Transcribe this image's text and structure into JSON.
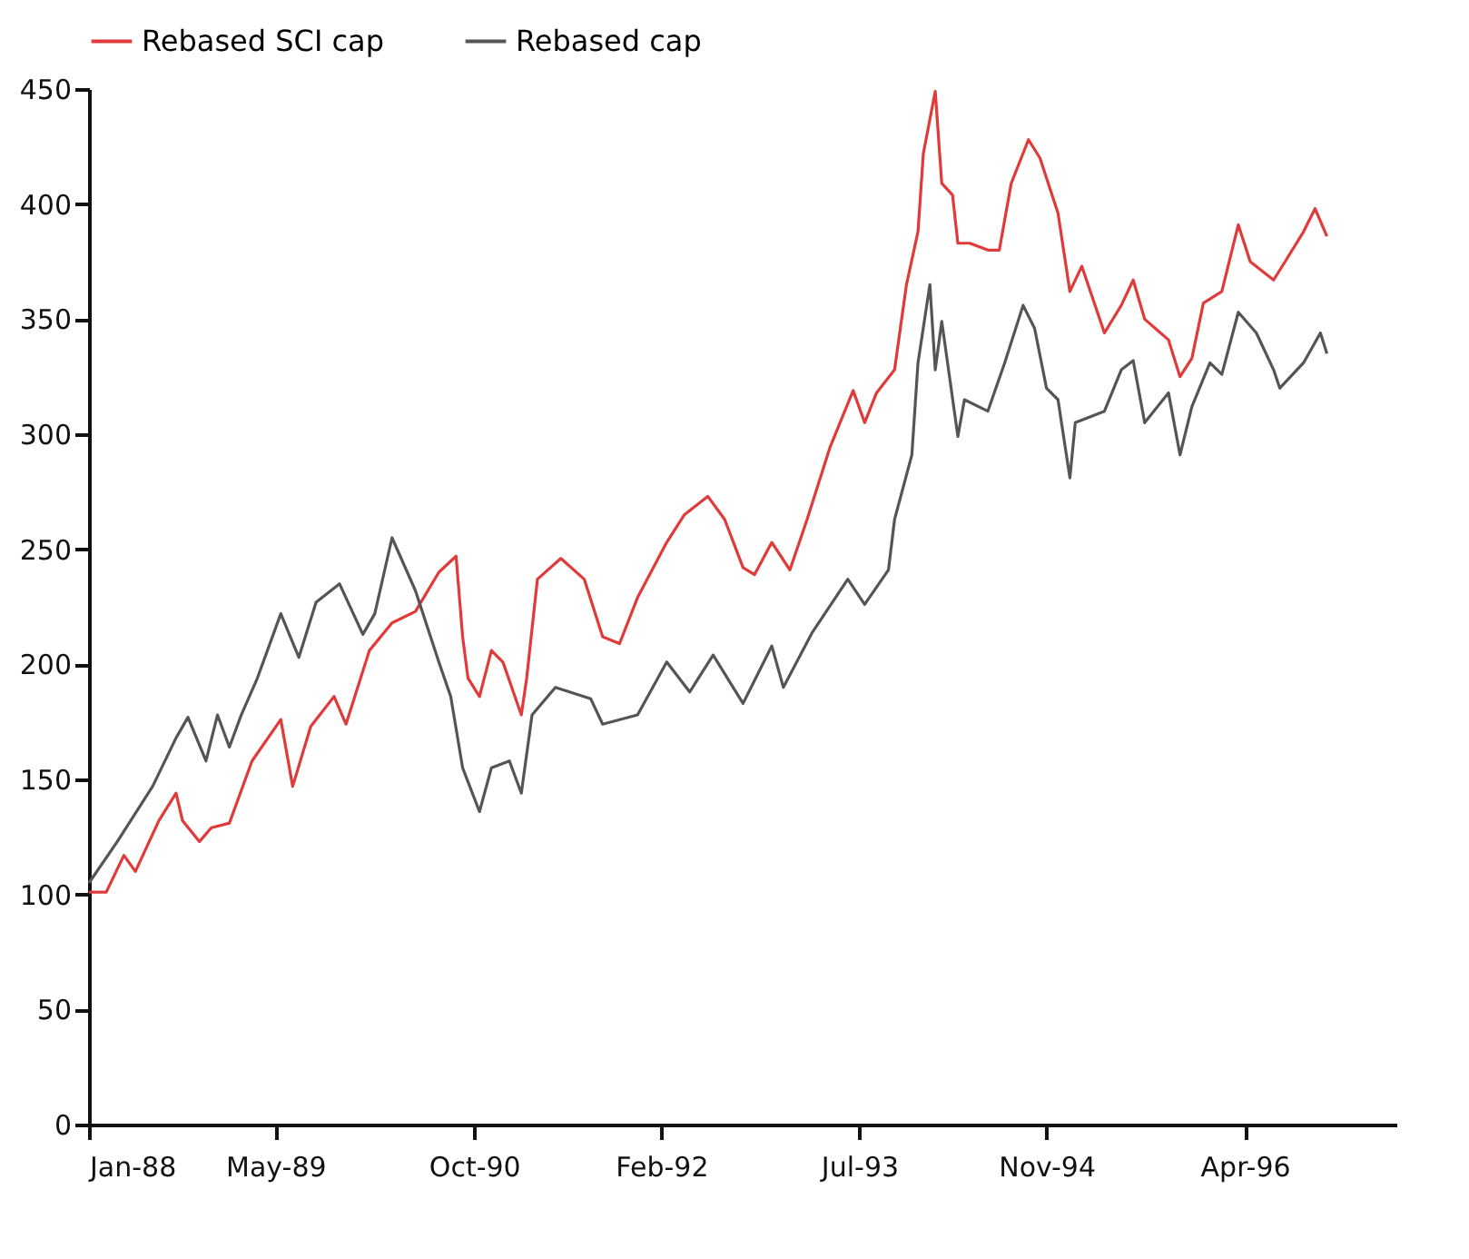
{
  "chart_data": {
    "type": "line",
    "xlim": [
      "1988-01-01",
      "1997-05-01"
    ],
    "xticks": [
      {
        "value": "1988-01-01",
        "label": "Jan-88"
      },
      {
        "value": "1989-05-01",
        "label": "May-89"
      },
      {
        "value": "1990-10-01",
        "label": "Oct-90"
      },
      {
        "value": "1992-02-01",
        "label": "Feb-92"
      },
      {
        "value": "1993-07-01",
        "label": "Jul-93"
      },
      {
        "value": "1994-11-01",
        "label": "Nov-94"
      },
      {
        "value": "1996-04-01",
        "label": "Apr-96"
      }
    ],
    "ylim": [
      0,
      450
    ],
    "yticks": [
      0,
      50,
      100,
      150,
      200,
      250,
      300,
      350,
      400,
      450
    ],
    "grid": false,
    "legend": "top",
    "series": [
      {
        "name": "Rebased SCI cap",
        "color": "#e03a3a",
        "x": [
          "1988-01-01",
          "1988-02-15",
          "1988-04-01",
          "1988-05-01",
          "1988-07-01",
          "1988-08-15",
          "1988-09-01",
          "1988-10-15",
          "1988-11-15",
          "1989-01-01",
          "1989-03-01",
          "1989-05-15",
          "1989-06-15",
          "1989-08-01",
          "1989-10-01",
          "1989-11-01",
          "1990-01-01",
          "1990-03-01",
          "1990-05-01",
          "1990-07-01",
          "1990-08-15",
          "1990-09-01",
          "1990-09-15",
          "1990-10-15",
          "1990-11-15",
          "1990-12-15",
          "1991-02-01",
          "1991-02-15",
          "1991-03-15",
          "1991-05-15",
          "1991-07-15",
          "1991-09-01",
          "1991-10-15",
          "1991-12-01",
          "1992-02-15",
          "1992-04-01",
          "1992-06-01",
          "1992-07-15",
          "1992-09-01",
          "1992-10-01",
          "1992-11-15",
          "1993-01-01",
          "1993-02-15",
          "1993-04-15",
          "1993-06-15",
          "1993-07-15",
          "1993-08-15",
          "1993-10-01",
          "1993-11-01",
          "1993-12-01",
          "1993-12-15",
          "1994-01-15",
          "1994-02-01",
          "1994-03-01",
          "1994-03-15",
          "1994-04-15",
          "1994-06-01",
          "1994-07-01",
          "1994-08-01",
          "1994-09-15",
          "1994-10-15",
          "1994-12-01",
          "1995-01-01",
          "1995-02-01",
          "1995-04-01",
          "1995-05-15",
          "1995-06-15",
          "1995-07-15",
          "1995-09-15",
          "1995-10-15",
          "1995-11-15",
          "1995-12-15",
          "1996-02-01",
          "1996-03-15",
          "1996-04-15",
          "1996-06-15",
          "1996-07-15",
          "1996-09-01",
          "1996-10-01",
          "1996-11-01"
        ],
        "values": [
          101,
          101,
          117,
          110,
          132,
          144,
          132,
          123,
          129,
          131,
          158,
          176,
          147,
          173,
          186,
          174,
          206,
          218,
          223,
          240,
          247,
          212,
          194,
          186,
          206,
          201,
          178,
          194,
          237,
          246,
          237,
          212,
          209,
          229,
          253,
          265,
          273,
          263,
          242,
          239,
          253,
          241,
          263,
          294,
          319,
          305,
          318,
          328,
          365,
          388,
          422,
          449,
          409,
          404,
          383,
          383,
          380,
          380,
          409,
          428,
          420,
          396,
          362,
          373,
          344,
          356,
          367,
          350,
          341,
          325,
          333,
          357,
          362,
          391,
          375,
          367,
          375,
          388,
          398,
          386
        ]
      },
      {
        "name": "Rebased cap",
        "color": "#555555",
        "x": [
          "1988-01-01",
          "1988-03-15",
          "1988-06-15",
          "1988-08-15",
          "1988-09-15",
          "1988-11-01",
          "1988-12-01",
          "1989-01-01",
          "1989-02-01",
          "1989-03-15",
          "1989-05-15",
          "1989-07-01",
          "1989-08-15",
          "1989-10-15",
          "1989-12-15",
          "1990-01-15",
          "1990-03-01",
          "1990-05-01",
          "1990-07-01",
          "1990-08-01",
          "1990-09-01",
          "1990-10-15",
          "1990-11-15",
          "1991-01-01",
          "1991-02-01",
          "1991-03-01",
          "1991-05-01",
          "1991-08-01",
          "1991-09-01",
          "1991-12-01",
          "1992-02-15",
          "1992-04-15",
          "1992-06-15",
          "1992-09-01",
          "1992-11-15",
          "1992-12-15",
          "1993-03-01",
          "1993-06-01",
          "1993-07-15",
          "1993-09-15",
          "1993-10-01",
          "1993-11-15",
          "1993-12-01",
          "1994-01-01",
          "1994-01-15",
          "1994-02-01",
          "1994-03-15",
          "1994-04-01",
          "1994-06-01",
          "1994-07-15",
          "1994-09-01",
          "1994-10-01",
          "1994-11-01",
          "1994-12-01",
          "1995-01-01",
          "1995-01-15",
          "1995-04-01",
          "1995-05-15",
          "1995-06-15",
          "1995-07-15",
          "1995-09-15",
          "1995-10-15",
          "1995-11-15",
          "1996-01-01",
          "1996-02-01",
          "1996-03-15",
          "1996-05-01",
          "1996-06-15",
          "1996-07-01",
          "1996-09-01",
          "1996-10-15",
          "1996-11-01"
        ],
        "values": [
          105,
          123,
          147,
          168,
          177,
          158,
          178,
          164,
          178,
          194,
          222,
          203,
          227,
          235,
          213,
          222,
          255,
          232,
          201,
          186,
          155,
          136,
          155,
          158,
          144,
          178,
          190,
          185,
          174,
          178,
          201,
          188,
          204,
          183,
          208,
          190,
          214,
          237,
          226,
          241,
          263,
          291,
          331,
          365,
          328,
          349,
          299,
          315,
          310,
          331,
          356,
          346,
          320,
          315,
          281,
          305,
          310,
          328,
          332,
          305,
          318,
          291,
          312,
          331,
          326,
          353,
          344,
          328,
          320,
          331,
          344,
          335
        ]
      }
    ]
  }
}
